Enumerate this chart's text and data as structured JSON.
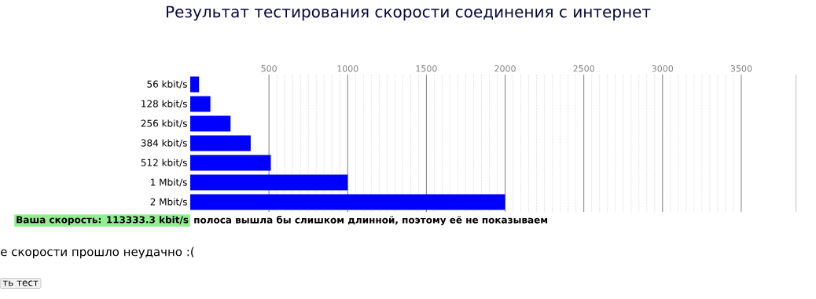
{
  "chart_data": {
    "type": "bar",
    "orientation": "horizontal",
    "title": "Результат тестирования скорости соединения с интернет",
    "categories": [
      "56 kbit/s",
      "128 kbit/s",
      "256 kbit/s",
      "384 kbit/s",
      "512 kbit/s",
      "1 Mbit/s",
      "2 Mbit/s"
    ],
    "values": [
      56,
      128,
      256,
      384,
      512,
      1000,
      2000
    ],
    "color": "#0000ff",
    "xlim": [
      0,
      3850
    ],
    "xticks": [
      500,
      1000,
      1500,
      2000,
      2500,
      3000,
      3500
    ],
    "grid": "x",
    "annotations": [
      "Ваша скорость: 113333.3 kbit/s",
      "полоса вышла бы слишком длинной, поэтому её не показываем",
      "е скорости прошло неудачно :(",
      "ть тест"
    ]
  }
}
